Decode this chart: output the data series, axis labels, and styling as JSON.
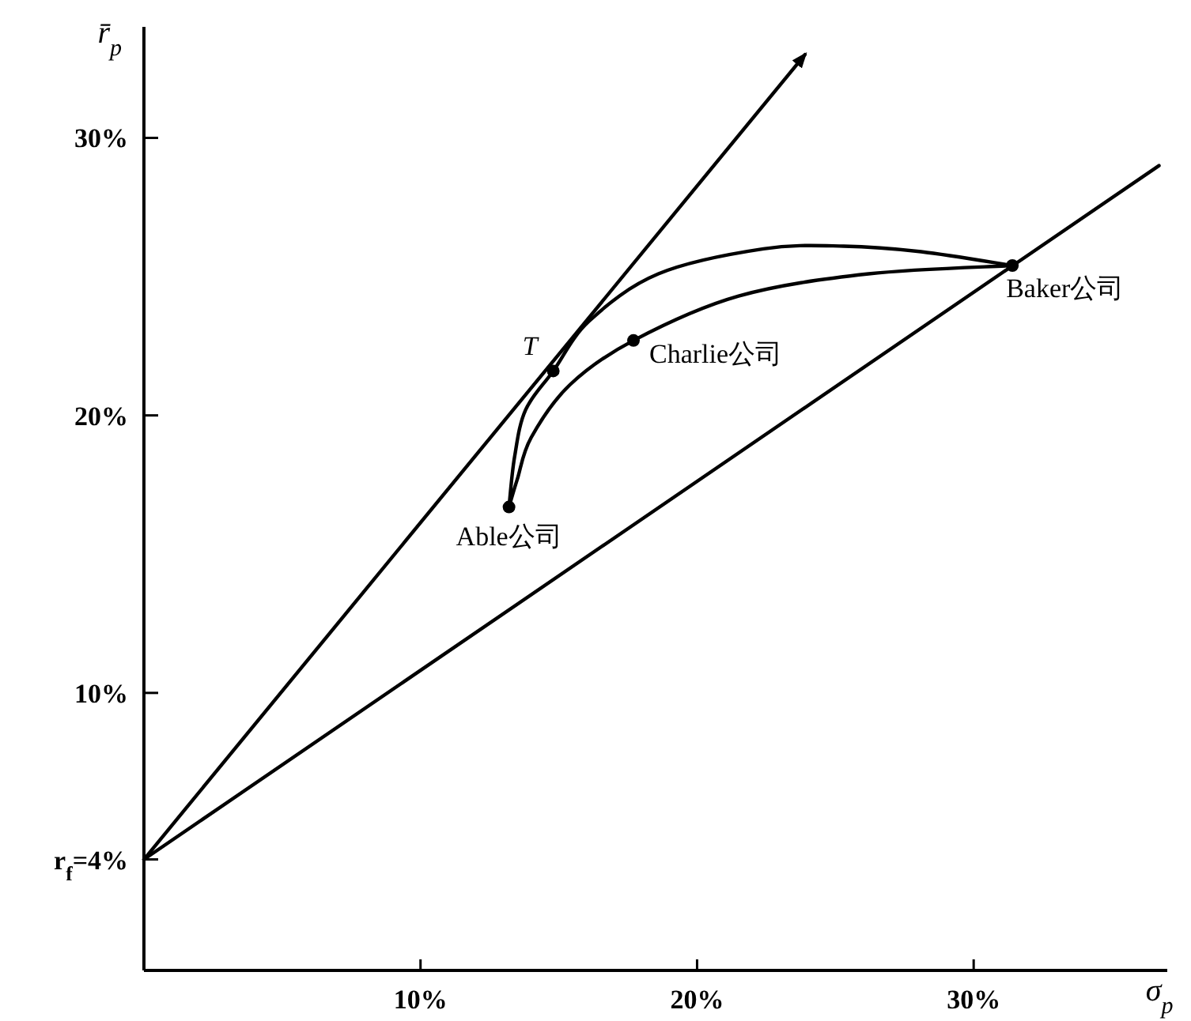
{
  "chart_data": {
    "type": "line",
    "xlabel": "σ$_{p}$",
    "ylabel": "r̄$_{p}$",
    "xlim": [
      0,
      37
    ],
    "ylim": [
      0,
      34
    ],
    "xticks": [
      {
        "value": 10,
        "label": "10%"
      },
      {
        "value": 20,
        "label": "20%"
      },
      {
        "value": 30,
        "label": "30%"
      }
    ],
    "yticks": [
      {
        "value": 4,
        "label": "r$_{f}$=4%"
      },
      {
        "value": 10,
        "label": "10%"
      },
      {
        "value": 20,
        "label": "20%"
      },
      {
        "value": 30,
        "label": "30%"
      }
    ],
    "series": [
      {
        "type": "line",
        "color": "#000000",
        "x": [
          0,
          23.9
        ],
        "values": [
          4,
          33.0
        ]
      },
      {
        "type": "line",
        "color": "#000000",
        "x": [
          0,
          36.7
        ],
        "values": [
          4,
          29.0
        ]
      },
      {
        "type": "line",
        "color": "#000000",
        "x": [
          13.2,
          13.4,
          13.8,
          14.8,
          16.1,
          18.6,
          22.4,
          25.3,
          28.1,
          31.4,
          26.2,
          21.5,
          17.7,
          15.4,
          14.0,
          13.5,
          13.2
        ],
        "values": [
          16.7,
          18.5,
          20.2,
          21.6,
          23.4,
          25.1,
          26.0,
          26.1,
          25.9,
          25.4,
          25.1,
          24.3,
          22.7,
          21.1,
          19.2,
          17.7,
          16.7
        ]
      },
      {
        "type": "scatter",
        "color": "#000000",
        "marker": "circle",
        "x": [
          13.2,
          14.8,
          17.7,
          31.4
        ],
        "values": [
          16.7,
          21.6,
          22.7,
          25.4
        ]
      }
    ],
    "annotations": [
      {
        "text": "Able公司",
        "x": 13.2,
        "y": 16.7
      },
      {
        "text": "T",
        "x": 14.8,
        "y": 21.6
      },
      {
        "text": "Charlie公司",
        "x": 17.7,
        "y": 22.7
      },
      {
        "text": "Baker公司",
        "x": 31.4,
        "y": 25.4
      }
    ]
  }
}
